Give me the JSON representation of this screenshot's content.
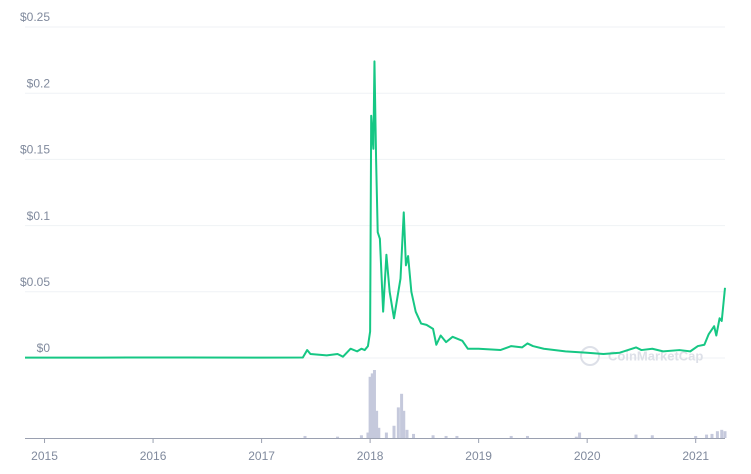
{
  "chart_data": [
    {
      "type": "line",
      "watermark": "CoinMarketCap",
      "xlim": [
        2014.82,
        2021.27
      ],
      "xticks": [
        2015,
        2016,
        2017,
        2018,
        2019,
        2020,
        2021
      ],
      "ylim": [
        0,
        0.25
      ],
      "yticks": [
        {
          "value": 0,
          "label": "$0"
        },
        {
          "value": 0.05,
          "label": "$0.05"
        },
        {
          "value": 0.1,
          "label": "$0.1"
        },
        {
          "value": 0.15,
          "label": "$0.15"
        },
        {
          "value": 0.2,
          "label": "$0.2"
        },
        {
          "value": 0.25,
          "label": "$0.25"
        }
      ],
      "grid": true,
      "series": [
        {
          "color": "#16c784",
          "x": [
            2014.82,
            2015.5,
            2016.3,
            2017.0,
            2017.38,
            2017.42,
            2017.45,
            2017.6,
            2017.7,
            2017.75,
            2017.82,
            2017.88,
            2017.92,
            2017.95,
            2017.98,
            2018.0,
            2018.01,
            2018.03,
            2018.04,
            2018.055,
            2018.07,
            2018.09,
            2018.12,
            2018.15,
            2018.18,
            2018.22,
            2018.28,
            2018.31,
            2018.33,
            2018.35,
            2018.38,
            2018.42,
            2018.47,
            2018.52,
            2018.58,
            2018.61,
            2018.65,
            2018.7,
            2018.76,
            2018.85,
            2018.9,
            2019.0,
            2019.2,
            2019.3,
            2019.4,
            2019.45,
            2019.5,
            2019.6,
            2019.8,
            2020.0,
            2020.15,
            2020.3,
            2020.45,
            2020.5,
            2020.6,
            2020.7,
            2020.85,
            2020.95,
            2021.02,
            2021.08,
            2021.12,
            2021.17,
            2021.19,
            2021.22,
            2021.24,
            2021.27
          ],
          "values": [
            0.0003,
            0.0003,
            0.0004,
            0.0003,
            0.0004,
            0.006,
            0.003,
            0.002,
            0.003,
            0.001,
            0.007,
            0.005,
            0.007,
            0.006,
            0.009,
            0.02,
            0.183,
            0.158,
            0.224,
            0.15,
            0.095,
            0.09,
            0.035,
            0.078,
            0.05,
            0.03,
            0.06,
            0.11,
            0.07,
            0.077,
            0.05,
            0.035,
            0.026,
            0.025,
            0.022,
            0.01,
            0.017,
            0.012,
            0.016,
            0.013,
            0.007,
            0.007,
            0.006,
            0.009,
            0.008,
            0.011,
            0.009,
            0.007,
            0.005,
            0.004,
            0.003,
            0.004,
            0.008,
            0.006,
            0.007,
            0.005,
            0.006,
            0.005,
            0.009,
            0.01,
            0.018,
            0.024,
            0.017,
            0.03,
            0.028,
            0.053
          ]
        }
      ]
    },
    {
      "type": "bar",
      "color": "#c5c9dc",
      "xlim": [
        2014.82,
        2021.27
      ],
      "ylim": [
        0,
        100
      ],
      "x": [
        2017.4,
        2017.7,
        2017.92,
        2017.98,
        2018.0,
        2018.02,
        2018.04,
        2018.06,
        2018.08,
        2018.15,
        2018.22,
        2018.26,
        2018.29,
        2018.31,
        2018.34,
        2018.4,
        2018.58,
        2018.7,
        2018.8,
        2019.3,
        2019.45,
        2019.9,
        2019.93,
        2020.45,
        2020.6,
        2021.0,
        2021.1,
        2021.15,
        2021.2,
        2021.24,
        2021.27
      ],
      "values": [
        3,
        2,
        4,
        8,
        90,
        95,
        100,
        40,
        15,
        8,
        18,
        45,
        65,
        40,
        12,
        6,
        4,
        3,
        3,
        3,
        3,
        2,
        8,
        5,
        4,
        3,
        5,
        6,
        10,
        12,
        10
      ]
    }
  ]
}
